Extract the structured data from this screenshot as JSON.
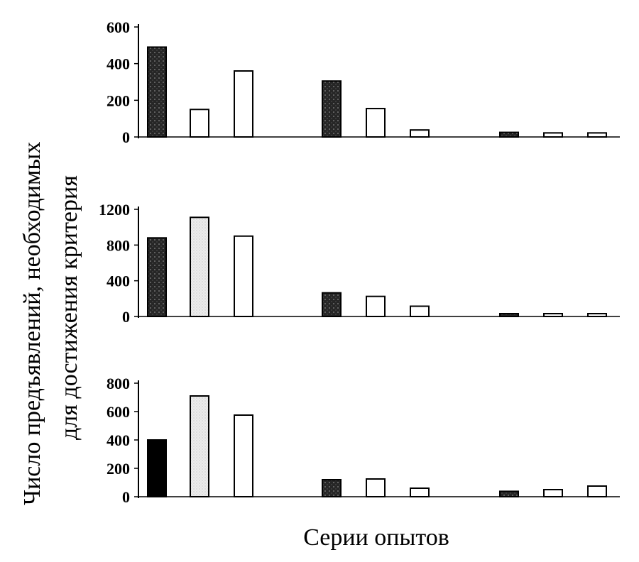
{
  "ylabel_line1": "Число предъявлений, необходимых",
  "ylabel_line2": "для достижения критерия",
  "xlabel": "Серии опытов",
  "colors": {
    "black": "#000000",
    "dark_pattern": "#262626",
    "light_gray": "#e4e4e4",
    "white": "#ffffff"
  },
  "chart_data": [
    {
      "type": "bar",
      "ylim": [
        0,
        600
      ],
      "yticks": [
        0,
        200,
        400,
        600
      ],
      "grid": false,
      "bars": [
        {
          "group": 1,
          "value": 490,
          "fill": "dark_pattern"
        },
        {
          "group": 1,
          "value": 150,
          "fill": "white"
        },
        {
          "group": 1,
          "value": 360,
          "fill": "white"
        },
        {
          "group": 2,
          "value": 305,
          "fill": "dark_pattern"
        },
        {
          "group": 2,
          "value": 155,
          "fill": "white"
        },
        {
          "group": 2,
          "value": 38,
          "fill": "white"
        },
        {
          "group": 3,
          "value": 25,
          "fill": "dark_pattern"
        },
        {
          "group": 3,
          "value": 22,
          "fill": "white"
        },
        {
          "group": 3,
          "value": 22,
          "fill": "white"
        }
      ]
    },
    {
      "type": "bar",
      "ylim": [
        0,
        1200
      ],
      "yticks": [
        0,
        400,
        800,
        1200
      ],
      "grid": false,
      "bars": [
        {
          "group": 1,
          "value": 880,
          "fill": "dark_pattern"
        },
        {
          "group": 1,
          "value": 1110,
          "fill": "light_gray"
        },
        {
          "group": 1,
          "value": 900,
          "fill": "white"
        },
        {
          "group": 2,
          "value": 265,
          "fill": "dark_pattern"
        },
        {
          "group": 2,
          "value": 225,
          "fill": "white"
        },
        {
          "group": 2,
          "value": 115,
          "fill": "white"
        },
        {
          "group": 3,
          "value": 25,
          "fill": "dark_pattern"
        },
        {
          "group": 3,
          "value": 30,
          "fill": "white"
        },
        {
          "group": 3,
          "value": 22,
          "fill": "white"
        }
      ]
    },
    {
      "type": "bar",
      "ylim": [
        0,
        800
      ],
      "yticks": [
        0,
        200,
        400,
        600,
        800
      ],
      "grid": false,
      "bars": [
        {
          "group": 1,
          "value": 400,
          "fill": "black"
        },
        {
          "group": 1,
          "value": 710,
          "fill": "light_gray"
        },
        {
          "group": 1,
          "value": 575,
          "fill": "white"
        },
        {
          "group": 2,
          "value": 120,
          "fill": "dark_pattern"
        },
        {
          "group": 2,
          "value": 125,
          "fill": "white"
        },
        {
          "group": 2,
          "value": 60,
          "fill": "white"
        },
        {
          "group": 3,
          "value": 38,
          "fill": "dark_pattern"
        },
        {
          "group": 3,
          "value": 50,
          "fill": "white"
        },
        {
          "group": 3,
          "value": 75,
          "fill": "white"
        }
      ]
    }
  ]
}
